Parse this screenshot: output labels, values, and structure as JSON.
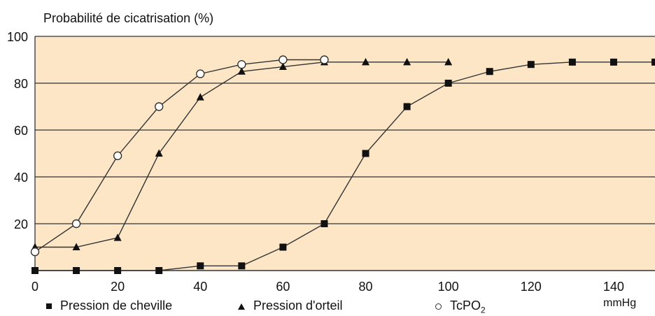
{
  "chart_data": {
    "type": "line",
    "title": "Probabilité de cicatrisation (%)",
    "xlabel": "mmHg",
    "ylabel": "",
    "xlim": [
      0,
      150
    ],
    "ylim": [
      0,
      100
    ],
    "xticks": [
      0,
      20,
      40,
      60,
      80,
      100,
      120,
      140
    ],
    "yticks": [
      20,
      40,
      60,
      80,
      100
    ],
    "grid": "horizontal",
    "legend_position": "bottom",
    "series": [
      {
        "name": "Pression de cheville",
        "marker": "square",
        "x": [
          0,
          10,
          20,
          30,
          40,
          50,
          60,
          70,
          80,
          90,
          100,
          110,
          120,
          130,
          140,
          150
        ],
        "y": [
          0,
          0,
          0,
          0,
          2,
          2,
          10,
          20,
          50,
          70,
          80,
          85,
          88,
          89,
          89,
          89
        ]
      },
      {
        "name": "Pression d'orteil",
        "marker": "triangle",
        "x": [
          0,
          10,
          20,
          30,
          40,
          50,
          60,
          70,
          80,
          90,
          100
        ],
        "y": [
          10,
          10,
          14,
          50,
          74,
          85,
          87,
          89,
          89,
          89,
          89
        ]
      },
      {
        "name": "TcPO2",
        "marker": "circle",
        "x": [
          0,
          10,
          20,
          30,
          40,
          50,
          60,
          70
        ],
        "y": [
          8,
          20,
          49,
          70,
          84,
          88,
          90,
          90
        ]
      }
    ]
  },
  "legend": {
    "ankle_label": "Pression de cheville",
    "toe_label": "Pression d'orteil",
    "tcpo2_label": "TcPO",
    "tcpo2_sub": "2"
  },
  "colors": {
    "plot_background": "#fde6c6",
    "line": "#333333",
    "marker": "#111111"
  }
}
